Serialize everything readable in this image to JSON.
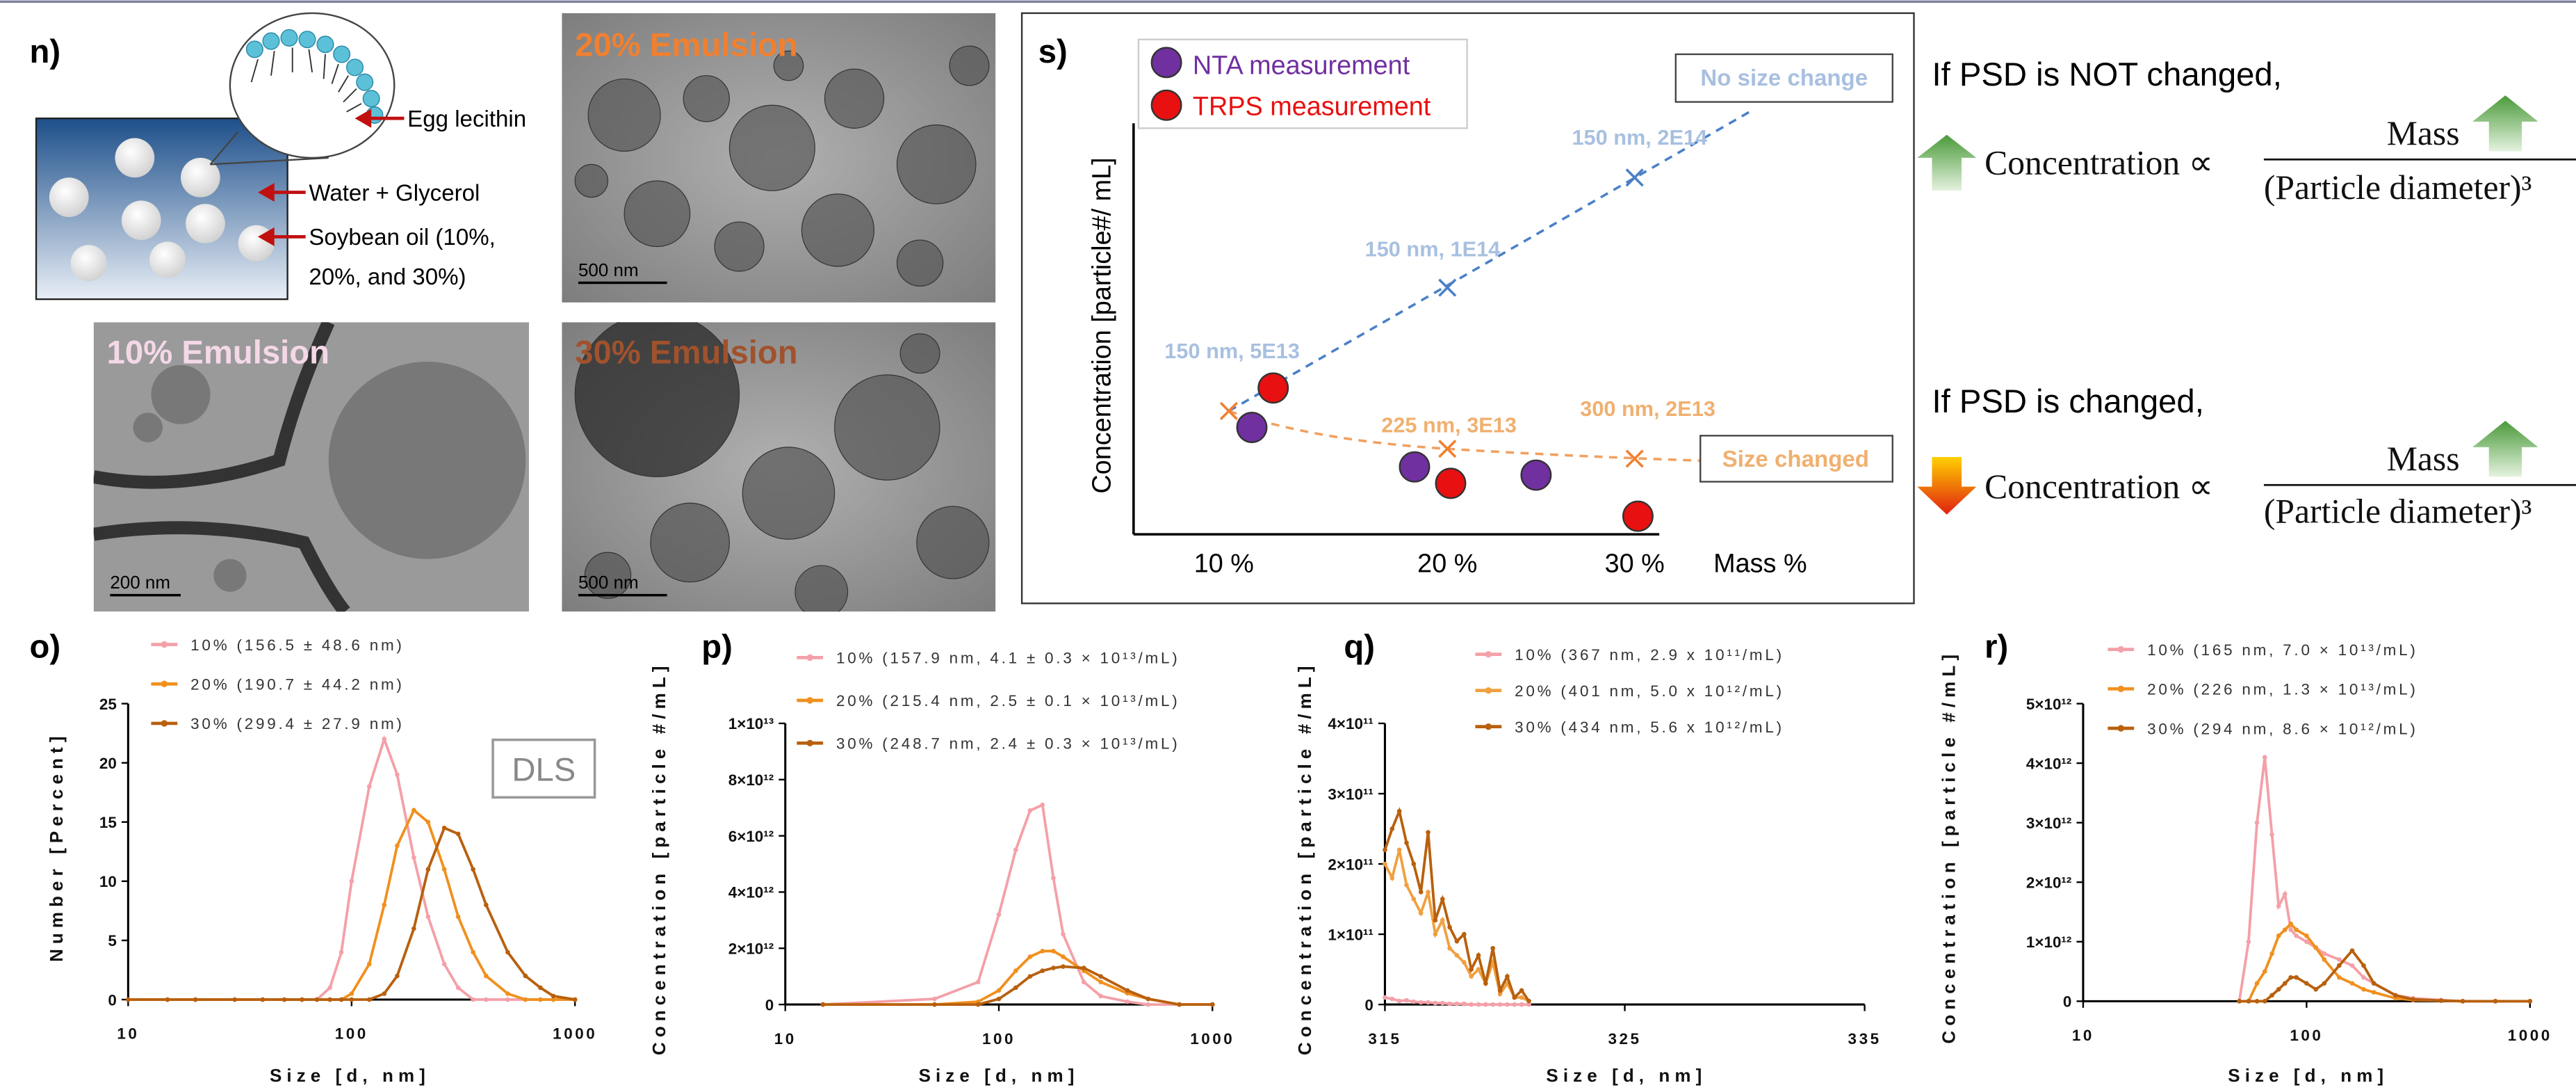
{
  "panel_n": {
    "label": "n)",
    "lecithin": "Egg lecithin",
    "water": "Water + Glycerol",
    "oil": [
      "Soybean oil (10%,",
      "20%, and 30%)"
    ]
  },
  "micrographs": [
    {
      "title": "20% Emulsion",
      "scale": "500 nm"
    },
    {
      "title": "10% Emulsion",
      "scale": "200 nm"
    },
    {
      "title": "30% Emulsion",
      "scale": "500 nm"
    }
  ],
  "panel_s": {
    "label": "s)",
    "legend": [
      "NTA measurement",
      "TRPS measurement"
    ],
    "y_label": "Concentration [particle#/ mL]",
    "x_categories": [
      "10 %",
      "20 %",
      "30 %"
    ],
    "x_label": "Mass %",
    "boxes": [
      "No size change",
      "Size changed"
    ],
    "annotations": [
      "150 nm, 5E13",
      "150 nm, 1E14",
      "150 nm, 2E14",
      "225 nm, 3E13",
      "300 nm, 2E13"
    ]
  },
  "equations": [
    {
      "condition": "If PSD is NOT changed,",
      "lhs": "Concentration ∝",
      "numerator": "Mass",
      "denominator": "(Particle diameter)³"
    },
    {
      "condition": "If PSD is changed,",
      "lhs": "Concentration ∝",
      "numerator": "Mass",
      "denominator": "(Particle diameter)³"
    }
  ],
  "chart_data": [
    {
      "type": "line",
      "label": "o)",
      "annotation": "DLS",
      "x_label": "Size [d, nm]",
      "y_label": "Number [Percent]",
      "xscale": "log",
      "xlim": [
        10,
        1000
      ],
      "xticks": [
        10,
        100,
        1000
      ],
      "ylim": [
        0,
        25
      ],
      "yticks": [
        0,
        5,
        10,
        15,
        20,
        25
      ],
      "x": [
        10,
        15,
        20,
        30,
        40,
        50,
        60,
        70,
        80,
        90,
        100,
        120,
        140,
        160,
        190,
        220,
        260,
        300,
        350,
        400,
        500,
        600,
        700,
        800,
        1000
      ],
      "series": [
        {
          "name": "10% (156.5 ± 48.6 nm)",
          "color": "#f4a0a8",
          "values": [
            0,
            0,
            0,
            0,
            0,
            0,
            0,
            0,
            1,
            4,
            10,
            18,
            22,
            19,
            12,
            7,
            3,
            1,
            0,
            0,
            0,
            0,
            0,
            0,
            0
          ]
        },
        {
          "name": "20% (190.7 ± 44.2 nm)",
          "color": "#f0901e",
          "values": [
            0,
            0,
            0,
            0,
            0,
            0,
            0,
            0,
            0,
            0,
            0.5,
            3,
            8,
            13,
            16,
            15,
            11,
            7,
            4,
            2,
            0.5,
            0,
            0,
            0,
            0
          ]
        },
        {
          "name": "30% (299.4 ± 27.9 nm)",
          "color": "#b8600e",
          "values": [
            0,
            0,
            0,
            0,
            0,
            0,
            0,
            0,
            0,
            0,
            0,
            0,
            0.5,
            2,
            6,
            11,
            14.5,
            14,
            11,
            8,
            4,
            2,
            1,
            0.3,
            0
          ]
        }
      ]
    },
    {
      "type": "line",
      "label": "p)",
      "x_label": "Size [d, nm]",
      "y_label": "Concentration [particle #/mL]",
      "xscale": "log",
      "xlim": [
        10,
        1000
      ],
      "xticks": [
        10,
        100,
        1000
      ],
      "ylim": [
        0,
        10000000000000.0
      ],
      "yticks": [
        0,
        {
          "value": 2000000000000.0,
          "label": "2×10¹²"
        },
        {
          "value": 4000000000000.0,
          "label": "4×10¹²"
        },
        {
          "value": 6000000000000.0,
          "label": "6×10¹²"
        },
        {
          "value": 8000000000000.0,
          "label": "8×10¹²"
        },
        {
          "value": 10000000000000.0,
          "label": "1×10¹³"
        }
      ],
      "x": [
        15,
        50,
        80,
        100,
        120,
        140,
        160,
        180,
        200,
        250,
        300,
        400,
        500,
        700,
        1000
      ],
      "series": [
        {
          "name": "10% (157.9 nm, 4.1 ± 0.3 × 10¹³/mL)",
          "color": "#f4a0a8",
          "values": [
            0,
            200000000000.0,
            800000000000.0,
            3200000000000.0,
            5500000000000.0,
            6900000000000.0,
            7100000000000.0,
            4500000000000.0,
            2500000000000.0,
            800000000000.0,
            300000000000.0,
            100000000000.0,
            0,
            0,
            0
          ]
        },
        {
          "name": "20% (215.4 nm, 2.5 ± 0.1 × 10¹³/mL)",
          "color": "#f0901e",
          "values": [
            0,
            0,
            100000000000.0,
            500000000000.0,
            1200000000000.0,
            1700000000000.0,
            1900000000000.0,
            1900000000000.0,
            1700000000000.0,
            1200000000000.0,
            800000000000.0,
            400000000000.0,
            200000000000.0,
            0,
            0
          ]
        },
        {
          "name": "30% (248.7 nm, 2.4 ± 0.3 × 10¹³/mL)",
          "color": "#b8600e",
          "values": [
            0,
            0,
            0,
            200000000000.0,
            600000000000.0,
            1000000000000.0,
            1200000000000.0,
            1300000000000.0,
            1350000000000.0,
            1300000000000.0,
            1000000000000.0,
            500000000000.0,
            200000000000.0,
            0,
            0
          ]
        }
      ]
    },
    {
      "type": "line",
      "label": "q)",
      "x_label": "Size [d, nm]",
      "y_label": "Concentration [particle #/mL]",
      "xscale": "linear",
      "xlim": [
        315,
        335
      ],
      "xticks": [
        315,
        325,
        335
      ],
      "ylim": [
        0,
        400000000000.0
      ],
      "yticks": [
        0,
        {
          "value": 100000000000.0,
          "label": "1×10¹¹"
        },
        {
          "value": 200000000000.0,
          "label": "2×10¹¹"
        },
        {
          "value": 300000000000.0,
          "label": "3×10¹¹"
        },
        {
          "value": 400000000000.0,
          "label": "4×10¹¹"
        }
      ],
      "x": [
        315,
        315.3,
        315.6,
        315.9,
        316.2,
        316.5,
        316.8,
        317.1,
        317.4,
        317.7,
        318,
        318.3,
        318.6,
        318.9,
        319.2,
        319.5,
        319.8,
        320.1,
        320.4,
        320.7,
        321
      ],
      "series": [
        {
          "name": "10% (367 nm, 2.9 x 10¹¹/mL)",
          "color": "#f4a0a8",
          "values": [
            10000000000.0,
            8000000000.0,
            5000000000.0,
            6000000000.0,
            4000000000.0,
            3000000000.0,
            3000000000.0,
            2000000000.0,
            2000000000.0,
            1000000000.0,
            1000000000.0,
            1000000000.0,
            0,
            0,
            0,
            0,
            0,
            0,
            0,
            0,
            0
          ]
        },
        {
          "name": "20% (401 nm, 5.0 x 10¹²/mL)",
          "color": "#f0a040",
          "values": [
            200000000000.0,
            180000000000.0,
            220000000000.0,
            170000000000.0,
            150000000000.0,
            130000000000.0,
            160000000000.0,
            100000000000.0,
            120000000000.0,
            80000000000.0,
            70000000000.0,
            60000000000.0,
            40000000000.0,
            50000000000.0,
            30000000000.0,
            60000000000.0,
            15000000000.0,
            30000000000.0,
            10000000000.0,
            10000000000.0,
            5000000000.0
          ]
        },
        {
          "name": "30% (434 nm, 5.6 x 10¹²/mL)",
          "color": "#b8600e",
          "values": [
            220000000000.0,
            250000000000.0,
            275000000000.0,
            230000000000.0,
            200000000000.0,
            160000000000.0,
            245000000000.0,
            120000000000.0,
            150000000000.0,
            110000000000.0,
            90000000000.0,
            100000000000.0,
            50000000000.0,
            70000000000.0,
            30000000000.0,
            80000000000.0,
            20000000000.0,
            40000000000.0,
            10000000000.0,
            20000000000.0,
            5000000000.0
          ]
        }
      ]
    },
    {
      "type": "line",
      "label": "r)",
      "x_label": "Size [d, nm]",
      "y_label": "Concentration [particle #/mL]",
      "xscale": "log",
      "xlim": [
        10,
        1000
      ],
      "xticks": [
        10,
        100,
        1000
      ],
      "ylim": [
        0,
        5000000000000.0
      ],
      "yticks": [
        0,
        {
          "value": 1000000000000.0,
          "label": "1×10¹²"
        },
        {
          "value": 2000000000000.0,
          "label": "2×10¹²"
        },
        {
          "value": 3000000000000.0,
          "label": "3×10¹²"
        },
        {
          "value": 4000000000000.0,
          "label": "4×10¹²"
        },
        {
          "value": 5000000000000.0,
          "label": "5×10¹²"
        }
      ],
      "x": [
        50,
        55,
        60,
        65,
        70,
        75,
        80,
        85,
        90,
        100,
        110,
        120,
        140,
        160,
        180,
        200,
        250,
        300,
        400,
        500,
        700,
        1000
      ],
      "series": [
        {
          "name": "10% (165 nm, 7.0 × 10¹³/mL)",
          "color": "#f4a0a8",
          "values": [
            0,
            1000000000000.0,
            3000000000000.0,
            4100000000000.0,
            2800000000000.0,
            1600000000000.0,
            1800000000000.0,
            1200000000000.0,
            1100000000000.0,
            1000000000000.0,
            900000000000.0,
            800000000000.0,
            700000000000.0,
            600000000000.0,
            400000000000.0,
            300000000000.0,
            100000000000.0,
            50000000000.0,
            20000000000.0,
            0,
            0,
            0
          ]
        },
        {
          "name": "20% (226 nm, 1.3 × 10¹³/mL)",
          "color": "#f0901e",
          "values": [
            0,
            0,
            300000000000.0,
            500000000000.0,
            800000000000.0,
            1100000000000.0,
            1200000000000.0,
            1300000000000.0,
            1200000000000.0,
            1100000000000.0,
            900000000000.0,
            700000000000.0,
            400000000000.0,
            300000000000.0,
            200000000000.0,
            150000000000.0,
            50000000000.0,
            20000000000.0,
            10000000000.0,
            0,
            0,
            0
          ]
        },
        {
          "name": "30% (294 nm, 8.6 × 10¹²/mL)",
          "color": "#b8600e",
          "values": [
            0,
            0,
            0,
            0,
            100000000000.0,
            200000000000.0,
            300000000000.0,
            400000000000.0,
            400000000000.0,
            300000000000.0,
            200000000000.0,
            300000000000.0,
            600000000000.0,
            850000000000.0,
            600000000000.0,
            300000000000.0,
            100000000000.0,
            30000000000.0,
            10000000000.0,
            0,
            0,
            0
          ]
        }
      ]
    }
  ]
}
